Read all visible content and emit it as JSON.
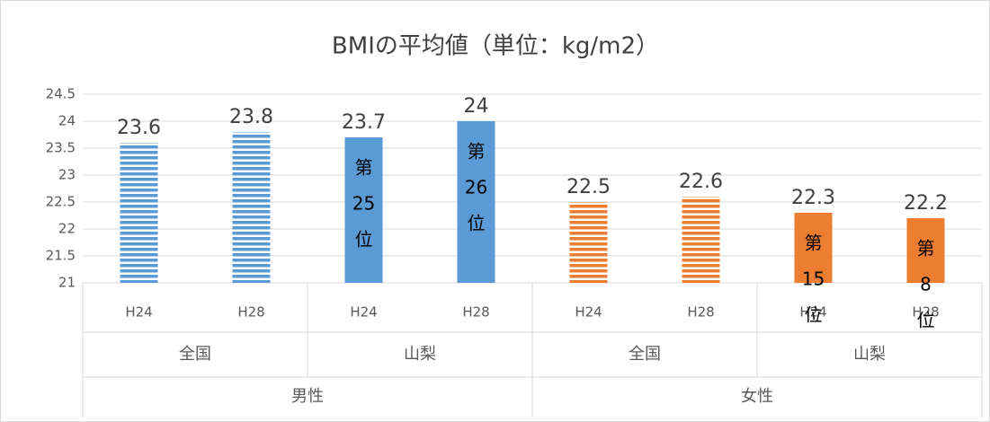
{
  "chart_data": {
    "type": "bar",
    "title": "BMIの平均値（単位：kg/m2）",
    "categories": [
      "H24",
      "H28",
      "H24",
      "H28",
      "H24",
      "H28",
      "H24",
      "H28"
    ],
    "groups": [
      "全国",
      "山梨",
      "全国",
      "山梨"
    ],
    "supergroups": [
      "男性",
      "女性"
    ],
    "values": [
      23.6,
      23.8,
      23.7,
      24,
      22.5,
      22.6,
      22.3,
      22.2
    ],
    "colors": [
      "#5b9bd5",
      "#5b9bd5",
      "#5b9bd5",
      "#5b9bd5",
      "#ed7d31",
      "#ed7d31",
      "#ed7d31",
      "#ed7d31"
    ],
    "fills": [
      "striped",
      "striped",
      "solid",
      "solid",
      "striped",
      "striped",
      "solid",
      "solid"
    ],
    "annotations": [
      null,
      null,
      [
        "第",
        "25",
        "位"
      ],
      [
        "第",
        "26",
        "位"
      ],
      null,
      null,
      [
        "第",
        "15",
        "位"
      ],
      [
        "第",
        "8",
        "位"
      ]
    ],
    "ylim": [
      21,
      24.5
    ],
    "yticks": [
      21,
      21.5,
      22,
      22.5,
      23,
      23.5,
      24,
      24.5
    ],
    "grid": true
  }
}
